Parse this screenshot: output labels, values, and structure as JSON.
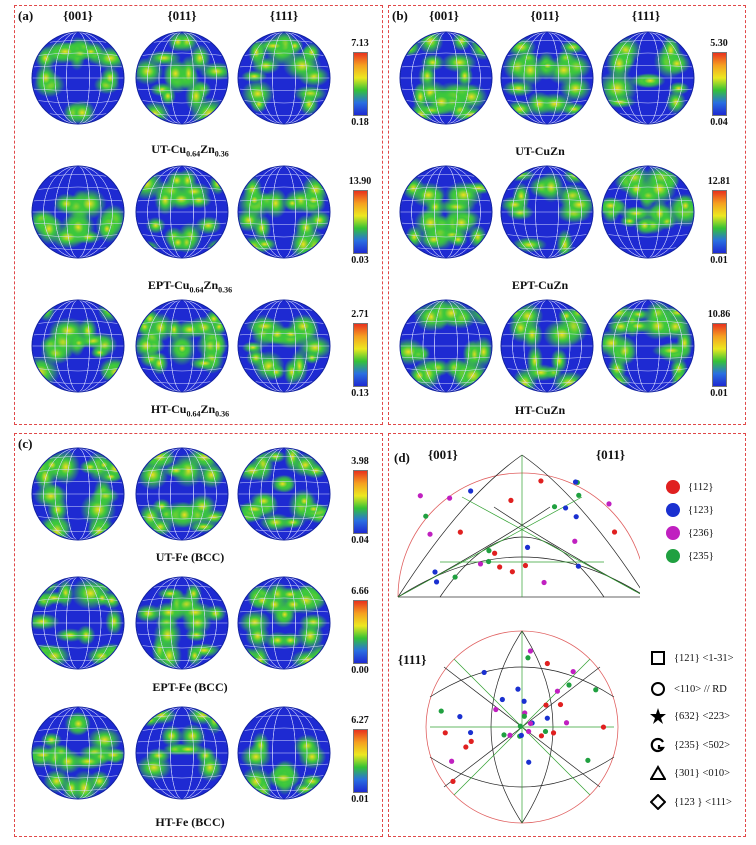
{
  "panel_a": {
    "label": "(a)",
    "headers": [
      "{001}",
      "{011}",
      "{111}"
    ],
    "rows": [
      {
        "caption_main": "UT-Cu",
        "sub1": "0.64",
        "mid": "Zn",
        "sub2": "0.36",
        "cb_max": "7.13",
        "cb_min": "0.18"
      },
      {
        "caption_main": "EPT-Cu",
        "sub1": "0.64",
        "mid": "Zn",
        "sub2": "0.36",
        "cb_max": "13.90",
        "cb_min": "0.03"
      },
      {
        "caption_main": "HT-Cu",
        "sub1": "0.64",
        "mid": "Zn",
        "sub2": "0.36",
        "cb_max": "2.71",
        "cb_min": "0.13"
      }
    ]
  },
  "panel_b": {
    "label": "(b)",
    "headers": [
      "{001}",
      "{011}",
      "{111}"
    ],
    "rows": [
      {
        "caption": "UT-CuZn",
        "cb_max": "5.30",
        "cb_min": "0.04"
      },
      {
        "caption": "EPT-CuZn",
        "cb_max": "12.81",
        "cb_min": "0.01"
      },
      {
        "caption": "HT-CuZn",
        "cb_max": "10.86",
        "cb_min": "0.01"
      }
    ]
  },
  "panel_c": {
    "label": "(c)",
    "rows": [
      {
        "caption": "UT-Fe (BCC)",
        "cb_max": "3.98",
        "cb_min": "0.04"
      },
      {
        "caption": "EPT-Fe (BCC)",
        "cb_max": "6.66",
        "cb_min": "0.00"
      },
      {
        "caption": "HT-Fe (BCC)",
        "cb_max": "6.27",
        "cb_min": "0.01"
      }
    ]
  },
  "panel_d": {
    "label": "(d)",
    "ipf_labels": {
      "top_left": "{001}",
      "top_right": "{011}",
      "bottom": "{111}"
    },
    "color_legend": [
      {
        "label": "{112}",
        "color": "#e02020"
      },
      {
        "label": "{123}",
        "color": "#1a30d0"
      },
      {
        "label": "{236}",
        "color": "#c020c0"
      },
      {
        "label": "{235}",
        "color": "#20a040"
      }
    ],
    "symbol_legend": [
      {
        "symbol": "square",
        "label": "{121} <1-31>"
      },
      {
        "symbol": "circle",
        "label": "<110> // RD"
      },
      {
        "symbol": "star",
        "label": "{632} <223>"
      },
      {
        "symbol": "hook",
        "label": "{235} <502>"
      },
      {
        "symbol": "triangle",
        "label": "{301} <010>"
      },
      {
        "symbol": "diamond",
        "label": "{123 } <111>"
      }
    ]
  },
  "colors": {
    "panel_border": "#e04848",
    "pole_bg": "#1e2ad2",
    "grid": "#d8dcff"
  }
}
